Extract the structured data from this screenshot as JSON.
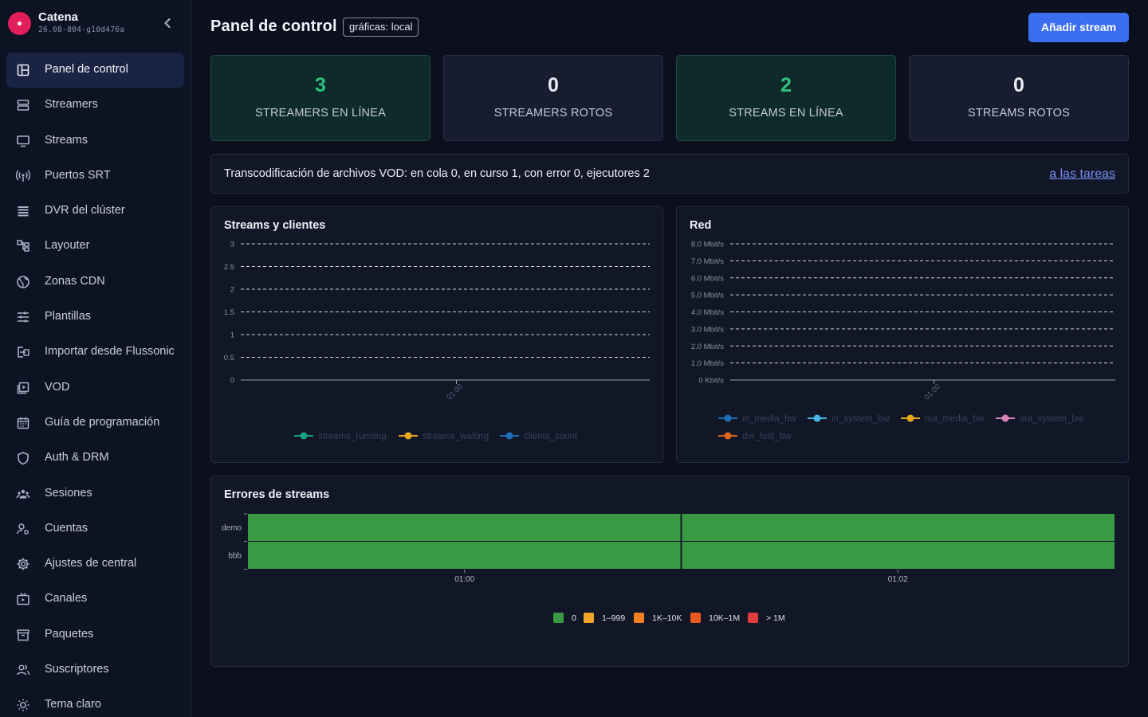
{
  "brand": {
    "name": "Catena",
    "version": "26.08-804-g10d476a"
  },
  "sidebar": {
    "items": [
      {
        "label": "Panel de control",
        "icon": "dashboard-icon",
        "active": true
      },
      {
        "label": "Streamers",
        "icon": "server-icon"
      },
      {
        "label": "Streams",
        "icon": "monitor-icon"
      },
      {
        "label": "Puertos SRT",
        "icon": "broadcast-icon"
      },
      {
        "label": "DVR del clúster",
        "icon": "storage-icon"
      },
      {
        "label": "Layouter",
        "icon": "layout-icon"
      },
      {
        "label": "Zonas CDN",
        "icon": "globe-icon"
      },
      {
        "label": "Plantillas",
        "icon": "sliders-icon"
      },
      {
        "label": "Importar desde Flussonic",
        "icon": "import-icon"
      },
      {
        "label": "VOD",
        "icon": "video-library-icon"
      },
      {
        "label": "Guía de programación",
        "icon": "calendar-icon"
      },
      {
        "label": "Auth & DRM",
        "icon": "shield-icon"
      },
      {
        "label": "Sesiones",
        "icon": "users-group-icon"
      },
      {
        "label": "Cuentas",
        "icon": "user-settings-icon"
      },
      {
        "label": "Ajustes de central",
        "icon": "gear-icon"
      },
      {
        "label": "Canales",
        "icon": "tv-icon"
      },
      {
        "label": "Paquetes",
        "icon": "archive-icon"
      },
      {
        "label": "Suscriptores",
        "icon": "subscribers-icon"
      },
      {
        "label": "Tema claro",
        "icon": "sun-icon"
      }
    ]
  },
  "header": {
    "title": "Panel de control",
    "badge": "gráficas: local",
    "add_button": "Añadir stream"
  },
  "stats": [
    {
      "value": "3",
      "label": "STREAMERS EN LÍNEA",
      "status": "good"
    },
    {
      "value": "0",
      "label": "STREAMERS ROTOS",
      "status": "neutral"
    },
    {
      "value": "2",
      "label": "STREAMS EN LÍNEA",
      "status": "good"
    },
    {
      "value": "0",
      "label": "STREAMS ROTOS",
      "status": "neutral"
    }
  ],
  "vod": {
    "text": "Transcodificación de archivos VOD: en cola 0, en curso 1, con error 0, ejecutores 2",
    "link": "a las tareas"
  },
  "colors": {
    "accent": "#3b6ef0",
    "good": "#2ec27e",
    "heat_ok": "#3a9a44"
  },
  "chart_data": [
    {
      "type": "line",
      "title": "Streams y clientes",
      "y_ticks": [
        "3",
        "2.5",
        "2",
        "1.5",
        "1",
        "0.5",
        "0"
      ],
      "ylim": [
        0,
        3
      ],
      "x_ticks": [
        "01:00"
      ],
      "grid": true,
      "legend_position": "bottom",
      "series": [
        {
          "name": "streams_running",
          "color": "#12a37a",
          "values": []
        },
        {
          "name": "streams_waiting",
          "color": "#e9a81a",
          "values": []
        },
        {
          "name": "clients_count",
          "color": "#1f6fb4",
          "values": []
        }
      ]
    },
    {
      "type": "line",
      "title": "Red",
      "y_ticks": [
        "8.0 Mbit/s",
        "7.0 Mbit/s",
        "6.0 Mbit/s",
        "5.0 Mbit/s",
        "4.0 Mbit/s",
        "3.0 Mbit/s",
        "2.0 Mbit/s",
        "1.0 Mbit/s",
        "0 Kbit/s"
      ],
      "ylim": [
        0,
        8
      ],
      "x_ticks": [
        "01:00"
      ],
      "grid": true,
      "legend_position": "bottom",
      "series": [
        {
          "name": "in_media_bw",
          "color": "#1f6fb4",
          "values": []
        },
        {
          "name": "in_system_bw",
          "color": "#48b4e8",
          "values": []
        },
        {
          "name": "out_media_bw",
          "color": "#e9a81a",
          "values": []
        },
        {
          "name": "out_system_bw",
          "color": "#d983b8",
          "values": []
        },
        {
          "name": "dvr_lost_bw",
          "color": "#e0651d",
          "values": []
        }
      ]
    },
    {
      "type": "heatmap",
      "title": "Errores de streams",
      "rows": [
        "demo",
        "bbb"
      ],
      "x_ticks": [
        "01:00",
        "01:02"
      ],
      "cells": [
        [
          "0",
          "0"
        ],
        [
          "0",
          "0"
        ]
      ],
      "legend_position": "bottom",
      "legend": [
        {
          "label": "0",
          "color": "#3a9a44"
        },
        {
          "label": "1–999",
          "color": "#f2a42a"
        },
        {
          "label": "1K–10K",
          "color": "#f08020"
        },
        {
          "label": "10K–1M",
          "color": "#ec5a20"
        },
        {
          "label": "> 1M",
          "color": "#e13c3c"
        }
      ]
    }
  ]
}
